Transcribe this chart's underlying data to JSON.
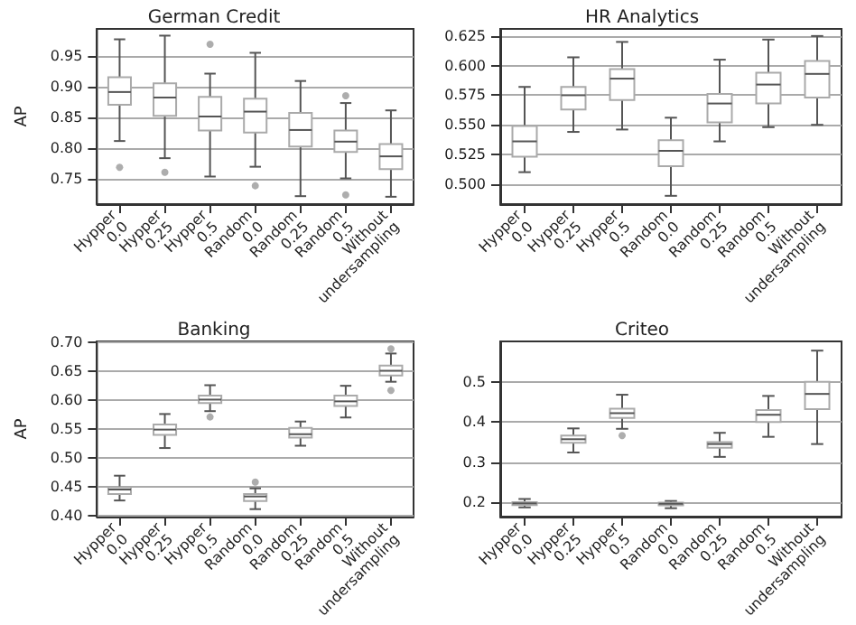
{
  "chart_data": [
    {
      "type": "box",
      "title": "German Credit",
      "ylabel": "AP",
      "color": "#ffffff",
      "grid": "y",
      "categories": [
        "Hypper\n0.0",
        "Hypper\n0.25",
        "Hypper\n0.5",
        "Random\n0.0",
        "Random\n0.25",
        "Random\n0.5",
        "Without\nundersampling"
      ],
      "ylim": [
        0.708,
        0.994
      ],
      "yticks": [
        {
          "value": 0.75,
          "label": "0.75"
        },
        {
          "value": 0.8,
          "label": "0.80"
        },
        {
          "value": 0.85,
          "label": "0.85"
        },
        {
          "value": 0.9,
          "label": "0.90"
        },
        {
          "value": 0.95,
          "label": "0.95"
        }
      ],
      "boxes": [
        {
          "low": 0.811,
          "q1": 0.87,
          "median": 0.891,
          "q3": 0.915,
          "high": 0.977,
          "outliers": [
            0.768
          ]
        },
        {
          "low": 0.783,
          "q1": 0.852,
          "median": 0.882,
          "q3": 0.905,
          "high": 0.983,
          "outliers": [
            0.76
          ]
        },
        {
          "low": 0.753,
          "q1": 0.828,
          "median": 0.851,
          "q3": 0.883,
          "high": 0.921,
          "outliers": [
            0.969
          ]
        },
        {
          "low": 0.769,
          "q1": 0.825,
          "median": 0.859,
          "q3": 0.88,
          "high": 0.955,
          "outliers": [
            0.738
          ]
        },
        {
          "low": 0.721,
          "q1": 0.802,
          "median": 0.829,
          "q3": 0.857,
          "high": 0.909
        },
        {
          "low": 0.75,
          "q1": 0.793,
          "median": 0.81,
          "q3": 0.828,
          "high": 0.873,
          "outliers": [
            0.885,
            0.723
          ]
        },
        {
          "low": 0.72,
          "q1": 0.765,
          "median": 0.786,
          "q3": 0.806,
          "high": 0.861
        }
      ]
    },
    {
      "type": "box",
      "title": "HR Analytics",
      "color": "#ffffff",
      "grid": "y",
      "categories": [
        "Hypper\n0.0",
        "Hypper\n0.25",
        "Hypper\n0.5",
        "Random\n0.0",
        "Random\n0.25",
        "Random\n0.5",
        "Without\nundersampling"
      ],
      "ylim": [
        0.483,
        0.631
      ],
      "yticks": [
        {
          "value": 0.5,
          "label": "0.500"
        },
        {
          "value": 0.525,
          "label": "0.525"
        },
        {
          "value": 0.55,
          "label": "0.550"
        },
        {
          "value": 0.575,
          "label": "0.575"
        },
        {
          "value": 0.6,
          "label": "0.600"
        },
        {
          "value": 0.625,
          "label": "0.625"
        }
      ],
      "boxes": [
        {
          "low": 0.51,
          "q1": 0.523,
          "median": 0.536,
          "q3": 0.549,
          "high": 0.582
        },
        {
          "low": 0.544,
          "q1": 0.563,
          "median": 0.575,
          "q3": 0.582,
          "high": 0.607
        },
        {
          "low": 0.546,
          "q1": 0.571,
          "median": 0.589,
          "q3": 0.597,
          "high": 0.62
        },
        {
          "low": 0.49,
          "q1": 0.515,
          "median": 0.528,
          "q3": 0.537,
          "high": 0.556
        },
        {
          "low": 0.536,
          "q1": 0.552,
          "median": 0.568,
          "q3": 0.576,
          "high": 0.605
        },
        {
          "low": 0.548,
          "q1": 0.568,
          "median": 0.584,
          "q3": 0.594,
          "high": 0.622
        },
        {
          "low": 0.55,
          "q1": 0.573,
          "median": 0.593,
          "q3": 0.604,
          "high": 0.625
        }
      ]
    },
    {
      "type": "box",
      "title": "Banking",
      "ylabel": "AP",
      "color": "#ffffff",
      "grid": "y",
      "categories": [
        "Hypper\n0.0",
        "Hypper\n0.25",
        "Hypper\n0.5",
        "Random\n0.0",
        "Random\n0.25",
        "Random\n0.5",
        "Without\nundersampling"
      ],
      "ylim": [
        0.398,
        0.702
      ],
      "yticks": [
        {
          "value": 0.4,
          "label": "0.40"
        },
        {
          "value": 0.45,
          "label": "0.45"
        },
        {
          "value": 0.5,
          "label": "0.50"
        },
        {
          "value": 0.55,
          "label": "0.55"
        },
        {
          "value": 0.6,
          "label": "0.60"
        },
        {
          "value": 0.65,
          "label": "0.65"
        },
        {
          "value": 0.7,
          "label": "0.70"
        }
      ],
      "boxes": [
        {
          "low": 0.426,
          "q1": 0.437,
          "median": 0.445,
          "q3": 0.449,
          "high": 0.469
        },
        {
          "low": 0.517,
          "q1": 0.54,
          "median": 0.549,
          "q3": 0.558,
          "high": 0.576
        },
        {
          "low": 0.581,
          "q1": 0.595,
          "median": 0.601,
          "q3": 0.608,
          "high": 0.626,
          "outliers": [
            0.571
          ]
        },
        {
          "low": 0.411,
          "q1": 0.425,
          "median": 0.433,
          "q3": 0.437,
          "high": 0.447,
          "outliers": [
            0.458
          ]
        },
        {
          "low": 0.521,
          "q1": 0.535,
          "median": 0.541,
          "q3": 0.552,
          "high": 0.563
        },
        {
          "low": 0.57,
          "q1": 0.59,
          "median": 0.598,
          "q3": 0.608,
          "high": 0.625
        },
        {
          "low": 0.632,
          "q1": 0.643,
          "median": 0.651,
          "q3": 0.66,
          "high": 0.681,
          "outliers": [
            0.689,
            0.617
          ]
        }
      ]
    },
    {
      "type": "box",
      "title": "Criteo",
      "color": "#ffffff",
      "grid": "y",
      "categories": [
        "Hypper\n0.0",
        "Hypper\n0.25",
        "Hypper\n0.5",
        "Random\n0.0",
        "Random\n0.25",
        "Random\n0.5",
        "Without\nundersampling"
      ],
      "ylim": [
        0.164,
        0.601
      ],
      "yticks": [
        0.2,
        0.3,
        0.4,
        0.5
      ],
      "boxes": [
        {
          "low": 0.187,
          "q1": 0.193,
          "median": 0.197,
          "q3": 0.2,
          "high": 0.208
        },
        {
          "low": 0.324,
          "q1": 0.348,
          "median": 0.357,
          "q3": 0.366,
          "high": 0.384
        },
        {
          "low": 0.383,
          "q1": 0.41,
          "median": 0.422,
          "q3": 0.433,
          "high": 0.468,
          "outliers": [
            0.366
          ]
        },
        {
          "low": 0.185,
          "q1": 0.192,
          "median": 0.196,
          "q3": 0.199,
          "high": 0.203
        },
        {
          "low": 0.313,
          "q1": 0.336,
          "median": 0.345,
          "q3": 0.35,
          "high": 0.373
        },
        {
          "low": 0.363,
          "q1": 0.4,
          "median": 0.418,
          "q3": 0.43,
          "high": 0.465
        },
        {
          "low": 0.345,
          "q1": 0.432,
          "median": 0.47,
          "q3": 0.5,
          "high": 0.578
        }
      ]
    }
  ]
}
